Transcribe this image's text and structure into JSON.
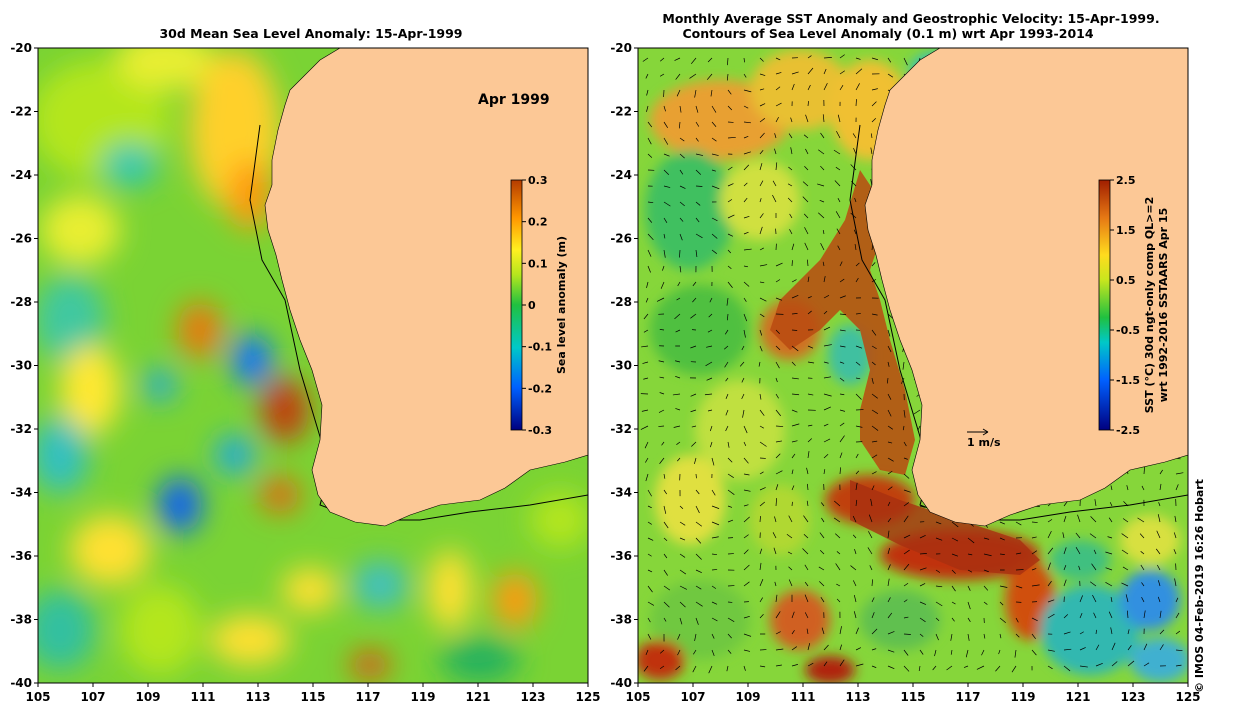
{
  "left_map": {
    "title": "30d Mean Sea Level Anomaly: 15-Apr-1999",
    "month_label": "Apr 1999",
    "colorbar": {
      "label": "Sea level anomaly (m)",
      "ticks": [
        "0.3",
        "0.2",
        "0.1",
        "0",
        "-0.1",
        "-0.2",
        "-0.3"
      ]
    }
  },
  "right_map": {
    "title_line1": "Monthly Average SST Anomaly  and Geostrophic Velocity: 15-Apr-1999.",
    "title_line2": "Contours of Sea Level Anomaly (0.1 m) wrt Apr 1993-2014",
    "vector_scale_label": "1 m/s",
    "colorbar": {
      "label_line1": "SST (°C) 30d ngt-only comp QL>=2",
      "label_line2": "wrt 1992-2016 SSTAARS Apr 15",
      "ticks": [
        "2.5",
        "1.5",
        "0.5",
        "-0.5",
        "-1.5",
        "-2.5"
      ]
    }
  },
  "axes": {
    "x_ticks": [
      "105",
      "107",
      "109",
      "111",
      "113",
      "115",
      "117",
      "119",
      "121",
      "123",
      "125"
    ],
    "y_ticks": [
      "-20",
      "-22",
      "-24",
      "-26",
      "-28",
      "-30",
      "-32",
      "-34",
      "-36",
      "-38",
      "-40"
    ]
  },
  "credit": "© IMOS 04-Feb-2019 16:26 Hobart",
  "colors": {
    "land": "#fcc896",
    "sla_scale": [
      "#00007f",
      "#0060ff",
      "#00c8c8",
      "#20c040",
      "#b4e61e",
      "#fff020",
      "#ff9600",
      "#b43c00"
    ]
  }
}
